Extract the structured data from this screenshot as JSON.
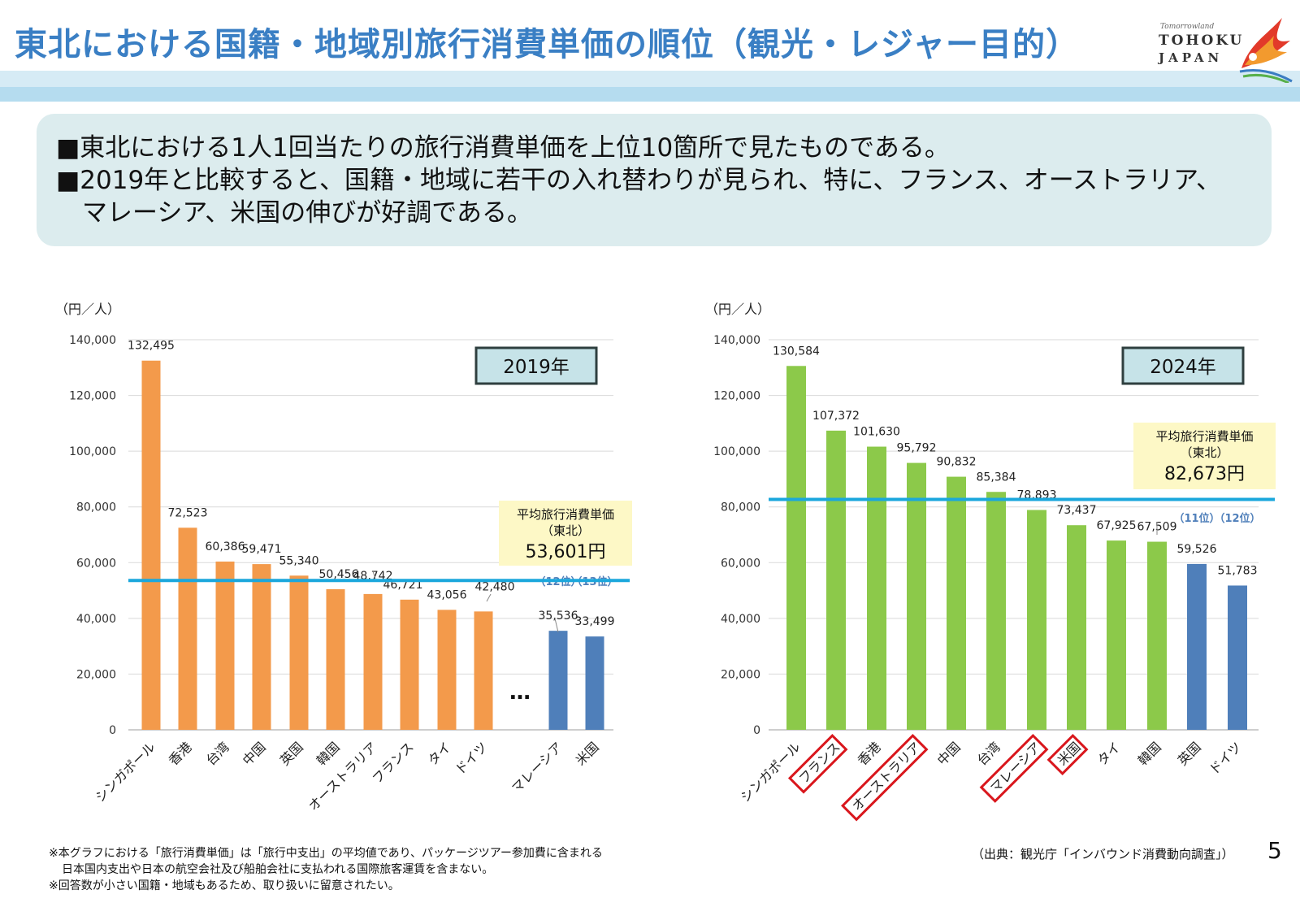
{
  "slide": {
    "title": "東北における国籍・地域別旅行消費単価の順位（観光・レジャー目的）",
    "logo_line0": "Tomorrowland",
    "logo_line1": "TOHOKU",
    "logo_line2": "JAPAN",
    "summary_line1": "■東北における1人1回当たりの旅行消費単価を上位10箇所で見たものである。",
    "summary_line2": "■2019年と比較すると、国籍・地域に若干の入れ替わりが見られ、特に、フランス、オーストラリア、",
    "summary_line3": "マレーシア、米国の伸びが好調である。",
    "footnote1": "※本グラフにおける「旅行消費単価」は「旅行中支出」の平均値であり、パッケージツアー参加費に含まれる",
    "footnote2": "日本国内支出や日本の航空会社及び船舶会社に支払われる国際旅客運賃を含まない。",
    "footnote3": "※回答数が小さい国籍・地域もあるため、取り扱いに留意されたい。",
    "source": "（出典：観光庁「インバウンド消費動向調査」）",
    "page_number": "5"
  },
  "colors": {
    "title": "#3a7fc4",
    "bar_2019": "#f39a4b",
    "bar_2024": "#8cc94a",
    "bar_outside": "#4f7fba",
    "average_line": "#1ba7dc",
    "rank_note": "#4f7fba",
    "highlight_box": "#d9171d",
    "avg_box": "#fdf8c6",
    "year_box": "#c6e3e8"
  },
  "chart_data": [
    {
      "type": "bar",
      "year_label": "2019年",
      "unit_label": "（円／人）",
      "ylim": [
        0,
        140000
      ],
      "yticks": [
        0,
        20000,
        40000,
        60000,
        80000,
        100000,
        120000,
        140000
      ],
      "ytick_labels": [
        "0",
        "20,000",
        "40,000",
        "60,000",
        "80,000",
        "100,000",
        "120,000",
        "140,000"
      ],
      "categories": [
        "シンガポール",
        "香港",
        "台湾",
        "中国",
        "英国",
        "韓国",
        "オーストラリア",
        "フランス",
        "タイ",
        "ドイツ",
        "マレーシア",
        "米国"
      ],
      "values": [
        132495,
        72523,
        60386,
        59471,
        55340,
        50456,
        48742,
        46721,
        43056,
        42480,
        35536,
        33499
      ],
      "value_labels": [
        "132,495",
        "72,523",
        "60,386",
        "59,471",
        "55,340",
        "50,456",
        "48,742",
        "46,721",
        "43,056",
        "42,480",
        "35,536",
        "33,499"
      ],
      "in_top10": [
        true,
        true,
        true,
        true,
        true,
        true,
        true,
        true,
        true,
        true,
        false,
        false
      ],
      "highlighted": [],
      "gap_marker": "…",
      "rank_notes": [
        "（12位）",
        "（13位）"
      ],
      "average": {
        "value": 53601,
        "label1": "平均旅行消費単価",
        "label2": "（東北）",
        "value_label": "53,601円"
      }
    },
    {
      "type": "bar",
      "year_label": "2024年",
      "unit_label": "（円／人）",
      "ylim": [
        0,
        140000
      ],
      "yticks": [
        0,
        20000,
        40000,
        60000,
        80000,
        100000,
        120000,
        140000
      ],
      "ytick_labels": [
        "0",
        "20,000",
        "40,000",
        "60,000",
        "80,000",
        "100,000",
        "120,000",
        "140,000"
      ],
      "categories": [
        "シンガポール",
        "フランス",
        "香港",
        "オーストラリア",
        "中国",
        "台湾",
        "マレーシア",
        "米国",
        "タイ",
        "韓国",
        "英国",
        "ドイツ"
      ],
      "values": [
        130584,
        107372,
        101630,
        95792,
        90832,
        85384,
        78893,
        73437,
        67925,
        67509,
        59526,
        51783
      ],
      "value_labels": [
        "130,584",
        "107,372",
        "101,630",
        "95,792",
        "90,832",
        "85,384",
        "78,893",
        "73,437",
        "67,925",
        "67,509",
        "59,526",
        "51,783"
      ],
      "in_top10": [
        true,
        true,
        true,
        true,
        true,
        true,
        true,
        true,
        true,
        true,
        false,
        false
      ],
      "highlighted": [
        "フランス",
        "オーストラリア",
        "マレーシア",
        "米国"
      ],
      "gap_marker": "",
      "rank_notes": [
        "（11位）",
        "（12位）"
      ],
      "average": {
        "value": 82673,
        "label1": "平均旅行消費単価",
        "label2": "（東北）",
        "value_label": "82,673円"
      }
    }
  ]
}
